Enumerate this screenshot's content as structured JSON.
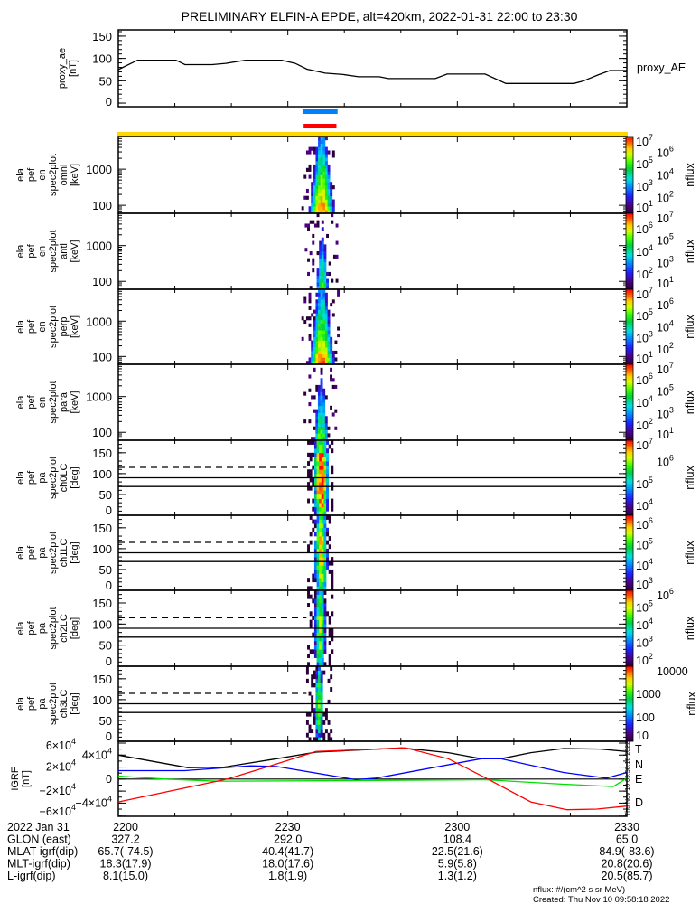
{
  "title": "PRELIMINARY ELFIN-A EPDE, alt=420km, 2022-01-31 22:00 to 23:30",
  "time_axis": {
    "date_label": "2022 Jan 31",
    "labels": [
      "2200",
      "2230",
      "2300",
      "2330"
    ],
    "range_minutes": [
      0,
      90
    ],
    "major_every_minutes": 30,
    "minor_every_minutes": 10
  },
  "ephemeris": [
    {
      "label": "GLON (east)",
      "values": [
        "327.2",
        "292.0",
        "108.4",
        "65.0"
      ]
    },
    {
      "label": "MLAT-igrf(dip)",
      "values": [
        "65.7(-74.5)",
        "40.4(41.7)",
        "22.5(21.6)",
        "84.9(-83.6)"
      ]
    },
    {
      "label": "MLT-igrf(dip)",
      "values": [
        "18.3(17.9)",
        "18.0(17.6)",
        "5.9(5.8)",
        "20.8(20.6)"
      ]
    },
    {
      "label": "L-igrf(dip)",
      "values": [
        "8.1(15.0)",
        "1.8(1.9)",
        "1.3(1.2)",
        "20.5(85.7)"
      ]
    }
  ],
  "footer": {
    "units": "nflux: #/(cm^2 s sr MeV)",
    "created": "Created: Thu Nov 10 09:58:18 2022"
  },
  "side_stamp": "Thu Nov 10 09:58:18 2022",
  "colors": {
    "science_zone_blue": "#0080ff",
    "science_zone_red": "#ff0000",
    "coverage_yellow": "#ffd800",
    "igrf_T": "#000000",
    "igrf_N": "#0000ff",
    "igrf_E": "#00e000",
    "igrf_D": "#ff0000"
  },
  "chart_data": [
    {
      "id": "proxy_ae",
      "type": "line",
      "ylabel": [
        "proxy_ae",
        "[nT]"
      ],
      "legend": "proxy_AE",
      "ylim": [
        -8,
        164
      ],
      "yticks": [
        0,
        50,
        100,
        150
      ],
      "x_minutes": [
        0,
        3.4,
        10.2,
        11.8,
        16.6,
        19.0,
        22.5,
        28.9,
        31.3,
        33.4,
        36.6,
        39.8,
        42.5,
        46.2,
        47.8,
        56.1,
        58.2,
        64.9,
        68.6,
        80.6,
        82.2,
        84.9,
        87.0,
        90
      ],
      "values": [
        75,
        96,
        96,
        86,
        86,
        89,
        96,
        96,
        89,
        76,
        67,
        64,
        59,
        59,
        55,
        55,
        65,
        65,
        44,
        44,
        49,
        63,
        73,
        73
      ]
    },
    {
      "id": "markers",
      "type": "bar",
      "bars": [
        {
          "name": "science-zone-blue",
          "color": "#0080ff",
          "t_start": 32.6,
          "t_end": 38.8
        },
        {
          "name": "science-zone-red",
          "color": "#ff0000",
          "t_start": 32.8,
          "t_end": 38.6
        },
        {
          "name": "coverage-yellow",
          "color": "#ffd800",
          "t_start": 0,
          "t_end": 90
        }
      ]
    },
    {
      "id": "en_omni",
      "type": "heatmap",
      "kind": "energy",
      "ylabel": [
        "ela",
        "pef",
        "en",
        "spec2plot",
        "omni",
        "[keV]"
      ],
      "ylim": [
        60,
        8000
      ],
      "yticks": [
        100,
        1000
      ],
      "zlabel": "nflux",
      "zlim_log": [
        0.7,
        7.45
      ],
      "zticks": [
        {
          "v": 7,
          "b": "10",
          "e": "7"
        },
        {
          "v": 6,
          "b": "10",
          "e": "6"
        },
        {
          "v": 5,
          "b": "10",
          "e": "5"
        },
        {
          "v": 4,
          "b": "10",
          "e": "4"
        },
        {
          "v": 3,
          "b": "10",
          "e": "3"
        },
        {
          "v": 2,
          "b": "10",
          "e": "2"
        },
        {
          "v": 1,
          "b": "10",
          "e": "1"
        }
      ],
      "event": {
        "t_center": 35.8,
        "t_halfwidth": 1.7,
        "peak_log_flux": 7.0,
        "slope_per_decade": 1.9,
        "t_range": [
          32.4,
          38.8
        ]
      }
    },
    {
      "id": "en_anti",
      "type": "heatmap",
      "kind": "energy",
      "ylabel": [
        "ela",
        "pef",
        "en",
        "spec2plot",
        "anti",
        "[keV]"
      ],
      "ylim": [
        60,
        8000
      ],
      "yticks": [
        100,
        1000
      ],
      "zlabel": "nflux",
      "zlim_log": [
        0.7,
        7.45
      ],
      "zticks": [
        {
          "v": 7,
          "b": "10",
          "e": "7"
        },
        {
          "v": 6,
          "b": "10",
          "e": "6"
        },
        {
          "v": 5,
          "b": "10",
          "e": "5"
        },
        {
          "v": 4,
          "b": "10",
          "e": "4"
        },
        {
          "v": 3,
          "b": "10",
          "e": "3"
        },
        {
          "v": 2,
          "b": "10",
          "e": "2"
        },
        {
          "v": 1,
          "b": "10",
          "e": "1"
        }
      ],
      "event": {
        "t_center": 35.9,
        "t_halfwidth": 1.0,
        "peak_log_flux": 5.3,
        "slope_per_decade": 2.2,
        "t_range": [
          33.0,
          38.8
        ]
      }
    },
    {
      "id": "en_perp",
      "type": "heatmap",
      "kind": "energy",
      "ylabel": [
        "ela",
        "pef",
        "en",
        "spec2plot",
        "perp",
        "[keV]"
      ],
      "ylim": [
        60,
        8000
      ],
      "yticks": [
        100,
        1000
      ],
      "zlabel": "nflux",
      "zlim_log": [
        0.7,
        7.45
      ],
      "zticks": [
        {
          "v": 7,
          "b": "10",
          "e": "7"
        },
        {
          "v": 6,
          "b": "10",
          "e": "6"
        },
        {
          "v": 5,
          "b": "10",
          "e": "5"
        },
        {
          "v": 4,
          "b": "10",
          "e": "4"
        },
        {
          "v": 3,
          "b": "10",
          "e": "3"
        },
        {
          "v": 2,
          "b": "10",
          "e": "2"
        },
        {
          "v": 1,
          "b": "10",
          "e": "1"
        }
      ],
      "event": {
        "t_center": 35.8,
        "t_halfwidth": 1.7,
        "peak_log_flux": 7.0,
        "slope_per_decade": 1.9,
        "t_range": [
          32.4,
          38.8
        ]
      }
    },
    {
      "id": "en_para",
      "type": "heatmap",
      "kind": "energy",
      "ylabel": [
        "ela",
        "pef",
        "en",
        "spec2plot",
        "para",
        "[keV]"
      ],
      "ylim": [
        60,
        8000
      ],
      "yticks": [
        100,
        1000
      ],
      "zlabel": "nflux",
      "zlim_log": [
        0.7,
        7.45
      ],
      "zticks": [
        {
          "v": 7,
          "b": "10",
          "e": "7"
        },
        {
          "v": 6,
          "b": "10",
          "e": "6"
        },
        {
          "v": 5,
          "b": "10",
          "e": "5"
        },
        {
          "v": 4,
          "b": "10",
          "e": "4"
        },
        {
          "v": 3,
          "b": "10",
          "e": "3"
        },
        {
          "v": 2,
          "b": "10",
          "e": "2"
        },
        {
          "v": 1,
          "b": "10",
          "e": "1"
        }
      ],
      "event": {
        "t_center": 35.7,
        "t_halfwidth": 1.1,
        "peak_log_flux": 5.6,
        "slope_per_decade": 2.1,
        "t_range": [
          32.8,
          38.6
        ]
      }
    },
    {
      "id": "pa_ch0",
      "type": "heatmap",
      "kind": "pitch_angle",
      "ylabel": [
        "ela",
        "pef",
        "pa",
        "spec2plot",
        "ch0LC",
        "[deg]"
      ],
      "ylim": [
        0,
        180
      ],
      "yticks": [
        0,
        50,
        100,
        150
      ],
      "zlabel": "nflux",
      "zlim_log": [
        3.6,
        7.0
      ],
      "zticks": [
        {
          "v": 7,
          "b": "10",
          "e": "7"
        },
        {
          "v": 6,
          "b": "10",
          "e": "6"
        },
        {
          "v": 5,
          "b": "10",
          "e": "5"
        },
        {
          "v": 4,
          "b": "10",
          "e": "4"
        }
      ],
      "ref_lines": {
        "solid": [
          90,
          69
        ],
        "dashed": 115,
        "dashed_until_minutes": 33.3
      },
      "event": {
        "t_center": 35.7,
        "t_halfwidth": 1.3,
        "peak_log_flux": 7.0,
        "t_range": [
          33.0,
          38.5
        ]
      }
    },
    {
      "id": "pa_ch1",
      "type": "heatmap",
      "kind": "pitch_angle",
      "ylabel": [
        "ela",
        "pef",
        "pa",
        "spec2plot",
        "ch1LC",
        "[deg]"
      ],
      "ylim": [
        0,
        180
      ],
      "yticks": [
        0,
        50,
        100,
        150
      ],
      "zlabel": "nflux",
      "zlim_log": [
        2.8,
        6.5
      ],
      "zticks": [
        {
          "v": 6,
          "b": "10",
          "e": "6"
        },
        {
          "v": 5,
          "b": "10",
          "e": "5"
        },
        {
          "v": 4,
          "b": "10",
          "e": "4"
        },
        {
          "v": 3,
          "b": "10",
          "e": "3"
        }
      ],
      "ref_lines": {
        "solid": [
          90,
          69
        ],
        "dashed": 115,
        "dashed_until_minutes": 33.3
      },
      "event": {
        "t_center": 35.7,
        "t_halfwidth": 1.2,
        "peak_log_flux": 5.8,
        "t_range": [
          33.0,
          38.5
        ]
      }
    },
    {
      "id": "pa_ch2",
      "type": "heatmap",
      "kind": "pitch_angle",
      "ylabel": [
        "ela",
        "pef",
        "pa",
        "spec2plot",
        "ch2LC",
        "[deg]"
      ],
      "ylim": [
        0,
        180
      ],
      "yticks": [
        0,
        50,
        100,
        150
      ],
      "zlabel": "nflux",
      "zlim_log": [
        1.7,
        6.0
      ],
      "zticks": [
        {
          "v": 6,
          "b": "10",
          "e": "6"
        },
        {
          "v": 5,
          "b": "10",
          "e": "5"
        },
        {
          "v": 4,
          "b": "10",
          "e": "4"
        },
        {
          "v": 3,
          "b": "10",
          "e": "3"
        },
        {
          "v": 2,
          "b": "10",
          "e": "2"
        }
      ],
      "ref_lines": {
        "solid": [
          90,
          69
        ],
        "dashed": 115,
        "dashed_until_minutes": 33.3
      },
      "event": {
        "t_center": 35.5,
        "t_halfwidth": 1.0,
        "peak_log_flux": 4.8,
        "t_range": [
          33.0,
          38.5
        ]
      }
    },
    {
      "id": "pa_ch3",
      "type": "heatmap",
      "kind": "pitch_angle",
      "ylabel": [
        "ela",
        "pef",
        "pa",
        "spec2plot",
        "ch3LC",
        "[deg]"
      ],
      "ylim": [
        0,
        180
      ],
      "yticks": [
        0,
        50,
        100,
        150
      ],
      "zlabel": "nflux",
      "zlim_log": [
        1.0,
        4.2
      ],
      "zticks": [
        {
          "v": 4,
          "b": "10000",
          "e": ""
        },
        {
          "v": 3,
          "b": "1000",
          "e": ""
        },
        {
          "v": 2,
          "b": "100",
          "e": ""
        },
        {
          "v": 1,
          "b": "10",
          "e": ""
        }
      ],
      "ref_lines": {
        "solid": [
          90,
          69
        ],
        "dashed": 115,
        "dashed_until_minutes": 33.3
      },
      "event": {
        "t_center": 35.3,
        "t_halfwidth": 1.0,
        "peak_log_flux": 3.0,
        "t_range": [
          32.4,
          38.8
        ]
      }
    },
    {
      "id": "igrf",
      "type": "line",
      "ylabel": [
        "IGRF",
        "[nT]"
      ],
      "ylim": [
        -62000,
        63000
      ],
      "yticks": [
        {
          "v": 60000,
          "b": "6×10",
          "e": "4"
        },
        {
          "v": 40000,
          "b": "4×10",
          "e": "4"
        },
        {
          "v": 20000,
          "b": "2×10",
          "e": "4"
        },
        {
          "v": 0,
          "b": "0",
          "e": ""
        },
        {
          "v": -20000,
          "b": "−2×10",
          "e": "4"
        },
        {
          "v": -40000,
          "b": "−4×10",
          "e": "4"
        },
        {
          "v": -60000,
          "b": "−6×10",
          "e": "4"
        }
      ],
      "series": [
        {
          "name": "T",
          "color": "#000000",
          "x_minutes": [
            0,
            12.3,
            18.7,
            28,
            35,
            50.2,
            58.4,
            64.2,
            67.7,
            73,
            78.8,
            85.3,
            90
          ],
          "values": [
            40000,
            19000,
            20000,
            34000,
            45000,
            52000,
            44000,
            34000,
            34000,
            44000,
            51000,
            50000,
            46000
          ]
        },
        {
          "name": "N",
          "color": "#0000ff",
          "x_minutes": [
            0,
            11.7,
            23.4,
            28,
            42,
            45.6,
            64.2,
            67.7,
            78.8,
            86.4,
            90
          ],
          "values": [
            14000,
            14000,
            22000,
            21000,
            -1000,
            1500,
            34000,
            34000,
            11000,
            1500,
            11000
          ]
        },
        {
          "name": "E",
          "color": "#00e000",
          "x_minutes": [
            0,
            8.2,
            17.5,
            42,
            64.8,
            78.8,
            87.6,
            90
          ],
          "values": [
            5000,
            0,
            -3500,
            -2500,
            -1000,
            -8500,
            -12500,
            1500
          ]
        },
        {
          "name": "D",
          "color": "#ff0000",
          "x_minutes": [
            0,
            19.3,
            26.9,
            35,
            50.8,
            58.4,
            65.4,
            73,
            79.4,
            84.7,
            90
          ],
          "values": [
            -38000,
            0,
            22000,
            46000,
            52000,
            34000,
            0,
            -38000,
            -51000,
            -50000,
            -45000
          ]
        }
      ]
    }
  ]
}
